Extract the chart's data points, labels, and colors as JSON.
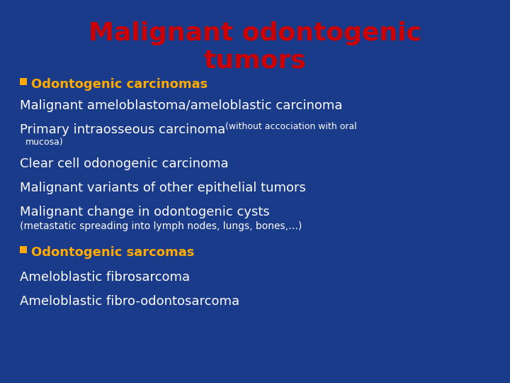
{
  "title_line1": "Malignant odontogenic",
  "title_line2": "tumors",
  "title_color": "#cc0000",
  "background_color": "#1a3a8a",
  "bullet_color": "#ffaa00",
  "white_color": "#ffffff",
  "footnote_color": "#dddddd",
  "bullet1_header": "Odontogenic carcinomas",
  "item1": "Malignant ameloblastoma/ameloblastic carcinoma",
  "item2_main": "Primary intraosseous carcinoma ",
  "item2_small": "(without accociation with oral",
  "item2_small2": "mucosa)",
  "item3": "Clear cell odonogenic carcinoma",
  "item4": "Malignant variants of other epithelial tumors",
  "item5": "Malignant change in odontogenic cysts",
  "footnote": "(metastatic spreading into lymph nodes, lungs, bones,…)",
  "bullet2_header": "Odontogenic sarcomas",
  "item6": "Ameloblastic fibrosarcoma",
  "item7": "Ameloblastic fibro-odontosarcoma",
  "title_fontsize": 26,
  "header_fontsize": 13,
  "item_fontsize": 13,
  "small_fontsize": 9,
  "footnote_fontsize": 10
}
